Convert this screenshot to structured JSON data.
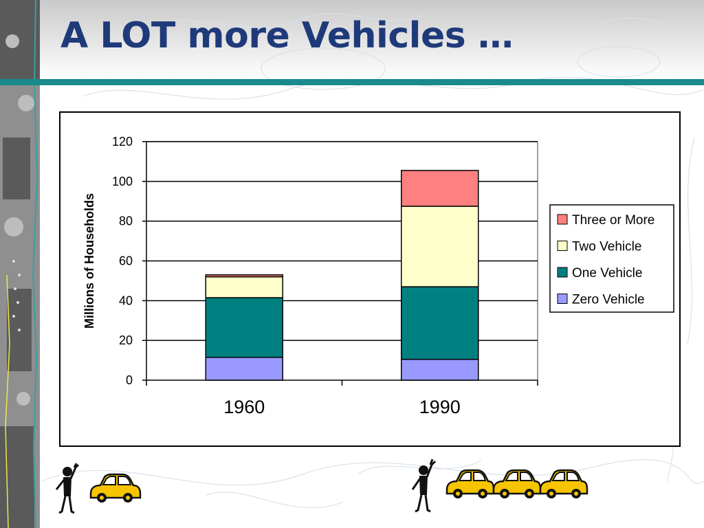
{
  "slide": {
    "title": "A LOT more Vehicles …"
  },
  "colors": {
    "title": "#1f3a7a",
    "accent_rule": "#1a8a8c",
    "car_body": "#f6c400"
  },
  "icons": {
    "person": "waving-stick-figure-icon",
    "car": "yellow-car-icon"
  },
  "illustrations": {
    "left_cars": 1,
    "right_cars": 3
  },
  "chart_data": {
    "type": "bar",
    "stacked": true,
    "categories": [
      "1960",
      "1990"
    ],
    "series": [
      {
        "name": "Zero Vehicle",
        "values": [
          11.5,
          10.5
        ],
        "color": "#9999ff"
      },
      {
        "name": "One Vehicle",
        "values": [
          30,
          36.5
        ],
        "color": "#008080"
      },
      {
        "name": "Two Vehicle",
        "values": [
          10.5,
          40.5
        ],
        "color": "#ffffcc"
      },
      {
        "name": "Three or More",
        "values": [
          1,
          18
        ],
        "color": "#ff8080"
      }
    ],
    "title": "",
    "xlabel": "",
    "ylabel": "Millions of Households",
    "ylim": [
      0,
      120
    ],
    "yticks": [
      0,
      20,
      40,
      60,
      80,
      100,
      120
    ],
    "grid": true,
    "legend_position": "right",
    "legend_order": [
      "Three or More",
      "Two Vehicle",
      "One Vehicle",
      "Zero Vehicle"
    ]
  }
}
